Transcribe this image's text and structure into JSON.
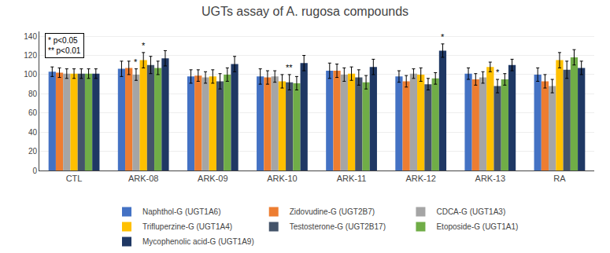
{
  "chart_data": {
    "type": "bar",
    "title": "UGTs assay of A. rugosa compounds",
    "categories": [
      "CTL",
      "ARK-08",
      "ARK-09",
      "ARK-10",
      "ARK-11",
      "ARK-12",
      "ARK-13",
      "RA"
    ],
    "series": [
      {
        "name": "Naphthol-G (UGT1A6)",
        "color": "#4472C4",
        "values": [
          103,
          106,
          98,
          98,
          104,
          98,
          101,
          100
        ],
        "errors": [
          5,
          8,
          7,
          8,
          8,
          6,
          6,
          7
        ]
      },
      {
        "name": "Zidovudine-G (UGT2B7)",
        "color": "#ED7D31",
        "values": [
          102,
          107,
          99,
          97,
          104,
          93,
          95,
          93
        ],
        "errors": [
          5,
          7,
          6,
          7,
          7,
          6,
          6,
          7
        ]
      },
      {
        "name": "CDCA-G (UGT1A3)",
        "color": "#A5A5A5",
        "values": [
          101,
          100,
          97,
          98,
          100,
          101,
          97,
          88
        ],
        "errors": [
          5,
          6,
          6,
          6,
          7,
          5,
          6,
          7
        ]
      },
      {
        "name": "Trifluperzine-G (UGT1A4)",
        "color": "#FFC000",
        "values": [
          101,
          115,
          98,
          93,
          101,
          100,
          108,
          115
        ],
        "errors": [
          5,
          8,
          7,
          7,
          7,
          7,
          5,
          8
        ]
      },
      {
        "name": "Testosterone-G (UGT2B17)",
        "color": "#44546A",
        "values": [
          101,
          110,
          93,
          92,
          97,
          90,
          88,
          105
        ],
        "errors": [
          5,
          9,
          8,
          8,
          8,
          6,
          7,
          9
        ]
      },
      {
        "name": "Etoposide-G (UGT1A1)",
        "color": "#70AD47",
        "values": [
          101,
          107,
          100,
          91,
          92,
          96,
          95,
          118
        ],
        "errors": [
          5,
          7,
          7,
          7,
          7,
          6,
          6,
          8
        ]
      },
      {
        "name": "Mycophenolic acid-G (UGT1A9)",
        "color": "#1F3864",
        "values": [
          101,
          117,
          111,
          112,
          108,
          125,
          110,
          107
        ],
        "errors": [
          5,
          8,
          8,
          8,
          8,
          7,
          6,
          7
        ]
      }
    ],
    "annotations": [
      {
        "category": "ARK-08",
        "series": "CDCA-G (UGT1A3)",
        "text": "*"
      },
      {
        "category": "ARK-08",
        "series": "Trifluperzine-G (UGT1A4)",
        "text": "*"
      },
      {
        "category": "ARK-10",
        "series": "Testosterone-G (UGT2B17)",
        "text": "**"
      },
      {
        "category": "ARK-12",
        "series": "Mycophenolic acid-G (UGT1A9)",
        "text": "*"
      },
      {
        "category": "ARK-13",
        "series": "Testosterone-G (UGT2B17)",
        "text": "*"
      }
    ],
    "note": "* p<0.05\n** p<0.01",
    "ylim": [
      0,
      145
    ],
    "yticks": [
      0,
      20,
      40,
      60,
      80,
      100,
      120,
      140
    ],
    "grid": true,
    "legend": "bottom"
  }
}
